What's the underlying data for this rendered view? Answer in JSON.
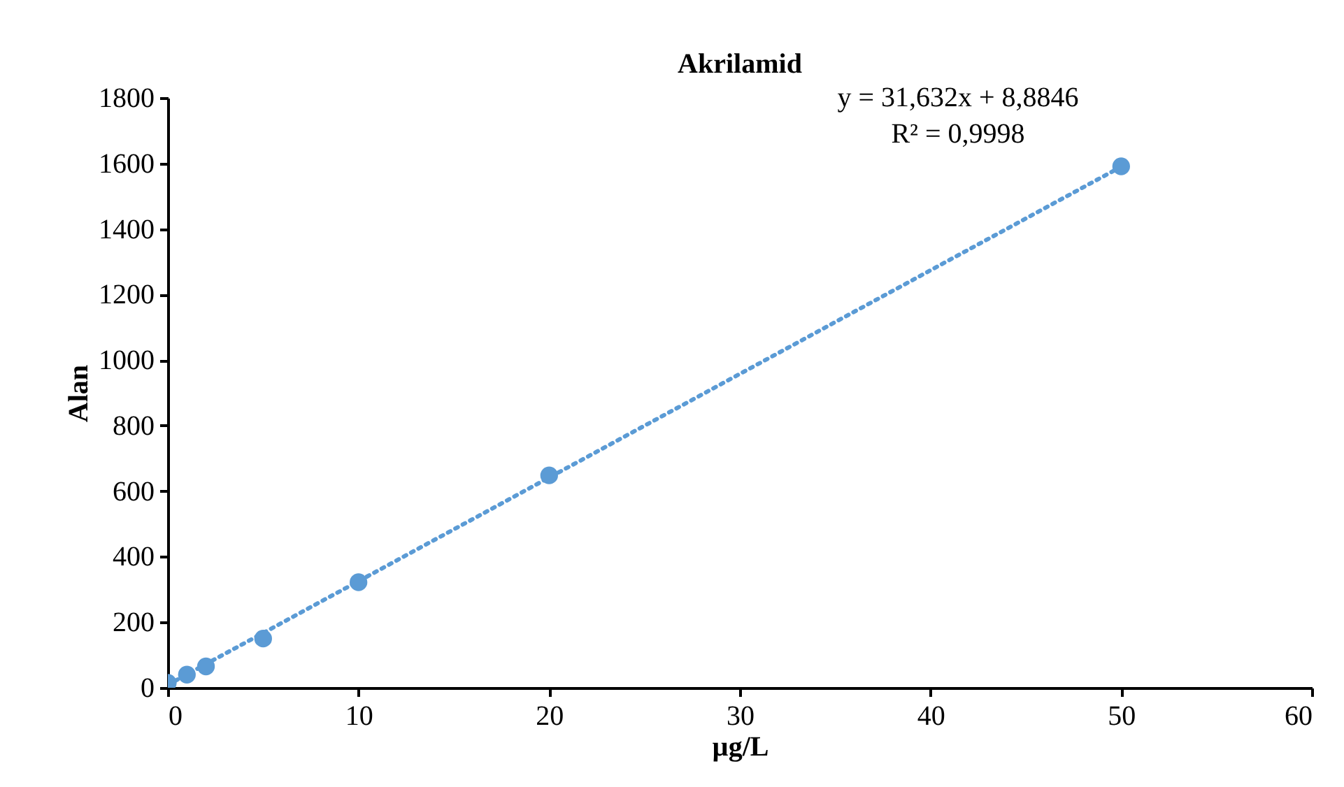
{
  "chart_data": {
    "type": "scatter",
    "title": "Akrilamid",
    "xlabel": "µg/L",
    "ylabel": "Alan",
    "annotations": [
      "y = 31,632x + 8,8846",
      "R² = 0,9998"
    ],
    "xlim": [
      0,
      60
    ],
    "xticks": [
      0,
      10,
      20,
      30,
      40,
      50,
      60
    ],
    "ylim": [
      0,
      1800
    ],
    "yticks": [
      0,
      200,
      400,
      600,
      800,
      1000,
      1200,
      1400,
      1600,
      1800
    ],
    "grid": false,
    "marker": "circle",
    "x": [
      0,
      1,
      2,
      5,
      10,
      20,
      50
    ],
    "series": [
      {
        "color": "#5b9bd5",
        "values": [
          15,
          40,
          65,
          150,
          322,
          648,
          1591
        ]
      },
      {
        "type": "line",
        "color": "#5b9bd5",
        "line_style": "dotted",
        "marker": "none",
        "x": [
          0,
          50
        ],
        "values": [
          9,
          1590
        ]
      }
    ]
  }
}
